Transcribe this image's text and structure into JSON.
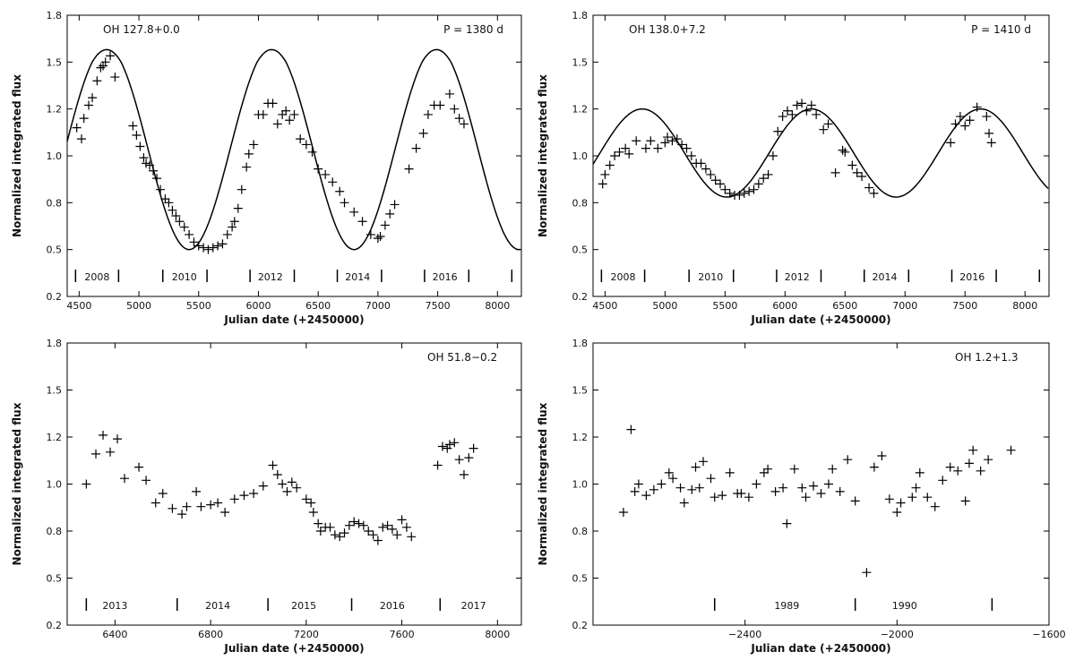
{
  "chart_data": [
    {
      "type": "scatter",
      "title": "",
      "annotation": "OH  127.8+0.0",
      "period_text": "P  =  1380  d",
      "xlabel": "Julian date (+2450000)",
      "ylabel": "Normalized integrated flux",
      "xlim": [
        4400,
        8200
      ],
      "ylim": [
        0.2,
        1.8
      ],
      "xticks": [
        4500,
        5000,
        5500,
        6000,
        6500,
        7000,
        7500,
        8000
      ],
      "yticks": [
        0.2,
        0.5,
        0.8,
        1.0,
        1.2,
        1.5,
        1.8
      ],
      "ytick_positions": [
        0.2,
        0.5,
        0.75,
        1.0,
        1.25,
        1.5,
        1.8
      ],
      "years": [
        {
          "label": "2008",
          "x": 4650
        },
        {
          "label": "2010",
          "x": 5380
        },
        {
          "label": "2012",
          "x": 6100
        },
        {
          "label": "2014",
          "x": 6830
        },
        {
          "label": "2016",
          "x": 7560
        }
      ],
      "year_ticks": [
        4470,
        4830,
        5200,
        5570,
        5930,
        6300,
        6660,
        7030,
        7390,
        7760,
        8120
      ],
      "model_curve": {
        "min": 0.5,
        "max": 1.58,
        "period": 1380,
        "peak_x": 4730
      },
      "points": [
        [
          4480,
          1.15
        ],
        [
          4520,
          1.09
        ],
        [
          4540,
          1.2
        ],
        [
          4580,
          1.27
        ],
        [
          4610,
          1.31
        ],
        [
          4650,
          1.4
        ],
        [
          4680,
          1.47
        ],
        [
          4700,
          1.48
        ],
        [
          4720,
          1.5
        ],
        [
          4760,
          1.54
        ],
        [
          4800,
          1.42
        ],
        [
          4950,
          1.16
        ],
        [
          4980,
          1.11
        ],
        [
          5010,
          1.05
        ],
        [
          5040,
          0.99
        ],
        [
          5060,
          0.96
        ],
        [
          5090,
          0.95
        ],
        [
          5120,
          0.92
        ],
        [
          5150,
          0.88
        ],
        [
          5180,
          0.82
        ],
        [
          5220,
          0.77
        ],
        [
          5250,
          0.75
        ],
        [
          5280,
          0.71
        ],
        [
          5310,
          0.68
        ],
        [
          5340,
          0.65
        ],
        [
          5380,
          0.62
        ],
        [
          5420,
          0.58
        ],
        [
          5460,
          0.54
        ],
        [
          5500,
          0.52
        ],
        [
          5540,
          0.51
        ],
        [
          5580,
          0.5
        ],
        [
          5620,
          0.51
        ],
        [
          5660,
          0.52
        ],
        [
          5700,
          0.53
        ],
        [
          5740,
          0.58
        ],
        [
          5780,
          0.62
        ],
        [
          5800,
          0.65
        ],
        [
          5830,
          0.72
        ],
        [
          5860,
          0.82
        ],
        [
          5900,
          0.94
        ],
        [
          5920,
          1.01
        ],
        [
          5960,
          1.06
        ],
        [
          6000,
          1.22
        ],
        [
          6040,
          1.22
        ],
        [
          6080,
          1.28
        ],
        [
          6120,
          1.28
        ],
        [
          6160,
          1.17
        ],
        [
          6200,
          1.22
        ],
        [
          6230,
          1.24
        ],
        [
          6260,
          1.19
        ],
        [
          6300,
          1.22
        ],
        [
          6350,
          1.09
        ],
        [
          6400,
          1.06
        ],
        [
          6450,
          1.02
        ],
        [
          6500,
          0.93
        ],
        [
          6560,
          0.9
        ],
        [
          6620,
          0.86
        ],
        [
          6680,
          0.81
        ],
        [
          6720,
          0.75
        ],
        [
          6800,
          0.7
        ],
        [
          6870,
          0.65
        ],
        [
          6940,
          0.58
        ],
        [
          7000,
          0.56
        ],
        [
          7020,
          0.57
        ],
        [
          7060,
          0.63
        ],
        [
          7100,
          0.69
        ],
        [
          7140,
          0.74
        ],
        [
          7260,
          0.93
        ],
        [
          7320,
          1.04
        ],
        [
          7380,
          1.12
        ],
        [
          7420,
          1.22
        ],
        [
          7470,
          1.27
        ],
        [
          7520,
          1.27
        ],
        [
          7600,
          1.33
        ],
        [
          7640,
          1.25
        ],
        [
          7680,
          1.2
        ],
        [
          7720,
          1.17
        ]
      ]
    },
    {
      "type": "scatter",
      "title": "",
      "annotation": "OH  138.0+7.2",
      "period_text": "P  =  1410  d",
      "xlabel": "Julian date (+2450000)",
      "ylabel": "Normalized integrated flux",
      "xlim": [
        4400,
        8200
      ],
      "ylim": [
        0.2,
        1.8
      ],
      "xticks": [
        4500,
        5000,
        5500,
        6000,
        6500,
        7000,
        7500,
        8000
      ],
      "yticks": [
        0.2,
        0.5,
        0.8,
        1.0,
        1.2,
        1.5,
        1.8
      ],
      "ytick_positions": [
        0.2,
        0.5,
        0.75,
        1.0,
        1.25,
        1.5,
        1.8
      ],
      "years": [
        {
          "label": "2008",
          "x": 4650
        },
        {
          "label": "2010",
          "x": 5380
        },
        {
          "label": "2012",
          "x": 6100
        },
        {
          "label": "2014",
          "x": 6830
        },
        {
          "label": "2016",
          "x": 7560
        }
      ],
      "year_ticks": [
        4470,
        4830,
        5200,
        5570,
        5930,
        6300,
        6660,
        7030,
        7390,
        7760,
        8120
      ],
      "model_curve": {
        "min": 0.78,
        "max": 1.25,
        "period": 1410,
        "peak_x": 4810
      },
      "points": [
        [
          4480,
          0.85
        ],
        [
          4500,
          0.9
        ],
        [
          4540,
          0.95
        ],
        [
          4580,
          1.0
        ],
        [
          4620,
          1.02
        ],
        [
          4670,
          1.04
        ],
        [
          4700,
          1.01
        ],
        [
          4760,
          1.08
        ],
        [
          4840,
          1.04
        ],
        [
          4880,
          1.08
        ],
        [
          4940,
          1.04
        ],
        [
          5000,
          1.07
        ],
        [
          5020,
          1.1
        ],
        [
          5060,
          1.08
        ],
        [
          5100,
          1.09
        ],
        [
          5140,
          1.06
        ],
        [
          5180,
          1.04
        ],
        [
          5220,
          1.0
        ],
        [
          5260,
          0.96
        ],
        [
          5300,
          0.96
        ],
        [
          5340,
          0.93
        ],
        [
          5380,
          0.9
        ],
        [
          5420,
          0.87
        ],
        [
          5460,
          0.85
        ],
        [
          5500,
          0.82
        ],
        [
          5540,
          0.8
        ],
        [
          5580,
          0.79
        ],
        [
          5620,
          0.79
        ],
        [
          5660,
          0.8
        ],
        [
          5700,
          0.81
        ],
        [
          5740,
          0.82
        ],
        [
          5780,
          0.85
        ],
        [
          5820,
          0.88
        ],
        [
          5860,
          0.9
        ],
        [
          5900,
          1.0
        ],
        [
          5940,
          1.13
        ],
        [
          5980,
          1.21
        ],
        [
          6020,
          1.24
        ],
        [
          6060,
          1.22
        ],
        [
          6100,
          1.27
        ],
        [
          6140,
          1.28
        ],
        [
          6180,
          1.24
        ],
        [
          6220,
          1.27
        ],
        [
          6260,
          1.22
        ],
        [
          6320,
          1.14
        ],
        [
          6360,
          1.17
        ],
        [
          6420,
          0.91
        ],
        [
          6480,
          1.03
        ],
        [
          6500,
          1.02
        ],
        [
          6560,
          0.95
        ],
        [
          6600,
          0.91
        ],
        [
          6640,
          0.89
        ],
        [
          6700,
          0.83
        ],
        [
          6740,
          0.8
        ],
        [
          7380,
          1.07
        ],
        [
          7420,
          1.17
        ],
        [
          7460,
          1.21
        ],
        [
          7500,
          1.16
        ],
        [
          7540,
          1.19
        ],
        [
          7600,
          1.26
        ],
        [
          7680,
          1.21
        ],
        [
          7700,
          1.12
        ],
        [
          7720,
          1.07
        ]
      ]
    },
    {
      "type": "scatter",
      "title": "",
      "annotation": "OH  51.8−0.2",
      "xlabel": "Julian date (+2450000)",
      "ylabel": "Normalized integrated flux",
      "xlim": [
        6200,
        8100
      ],
      "ylim": [
        0.2,
        1.8
      ],
      "xticks": [
        6400,
        6800,
        7200,
        7600,
        8000
      ],
      "yticks": [
        0.2,
        0.5,
        0.8,
        1.0,
        1.2,
        1.5,
        1.8
      ],
      "ytick_positions": [
        0.2,
        0.5,
        0.75,
        1.0,
        1.25,
        1.5,
        1.8
      ],
      "years": [
        {
          "label": "2013",
          "x": 6400
        },
        {
          "label": "2014",
          "x": 6830
        },
        {
          "label": "2015",
          "x": 7190
        },
        {
          "label": "2016",
          "x": 7560
        },
        {
          "label": "2017",
          "x": 7900
        }
      ],
      "year_ticks": [
        6280,
        6660,
        7040,
        7390,
        7760
      ],
      "points": [
        [
          6280,
          1.0
        ],
        [
          6320,
          1.16
        ],
        [
          6350,
          1.26
        ],
        [
          6380,
          1.17
        ],
        [
          6410,
          1.24
        ],
        [
          6440,
          1.03
        ],
        [
          6500,
          1.09
        ],
        [
          6530,
          1.02
        ],
        [
          6570,
          0.9
        ],
        [
          6600,
          0.95
        ],
        [
          6640,
          0.87
        ],
        [
          6680,
          0.84
        ],
        [
          6700,
          0.88
        ],
        [
          6740,
          0.96
        ],
        [
          6760,
          0.88
        ],
        [
          6800,
          0.89
        ],
        [
          6830,
          0.9
        ],
        [
          6860,
          0.85
        ],
        [
          6900,
          0.92
        ],
        [
          6940,
          0.94
        ],
        [
          6980,
          0.95
        ],
        [
          7020,
          0.99
        ],
        [
          7060,
          1.1
        ],
        [
          7080,
          1.05
        ],
        [
          7100,
          1.0
        ],
        [
          7120,
          0.96
        ],
        [
          7140,
          1.01
        ],
        [
          7160,
          0.98
        ],
        [
          7200,
          0.92
        ],
        [
          7220,
          0.9
        ],
        [
          7230,
          0.85
        ],
        [
          7250,
          0.79
        ],
        [
          7260,
          0.75
        ],
        [
          7280,
          0.77
        ],
        [
          7300,
          0.77
        ],
        [
          7320,
          0.73
        ],
        [
          7340,
          0.72
        ],
        [
          7360,
          0.74
        ],
        [
          7380,
          0.78
        ],
        [
          7400,
          0.8
        ],
        [
          7420,
          0.79
        ],
        [
          7440,
          0.78
        ],
        [
          7460,
          0.75
        ],
        [
          7480,
          0.73
        ],
        [
          7500,
          0.7
        ],
        [
          7520,
          0.77
        ],
        [
          7540,
          0.78
        ],
        [
          7560,
          0.76
        ],
        [
          7580,
          0.73
        ],
        [
          7600,
          0.81
        ],
        [
          7620,
          0.77
        ],
        [
          7640,
          0.72
        ],
        [
          7750,
          1.1
        ],
        [
          7770,
          1.2
        ],
        [
          7790,
          1.19
        ],
        [
          7800,
          1.21
        ],
        [
          7820,
          1.22
        ],
        [
          7840,
          1.13
        ],
        [
          7860,
          1.05
        ],
        [
          7880,
          1.14
        ],
        [
          7900,
          1.19
        ]
      ]
    },
    {
      "type": "scatter",
      "title": "",
      "annotation": "OH  1.2+1.3",
      "xlabel": "Julian date (+2450000)",
      "ylabel": "Normalized integrated flux",
      "xlim": [
        -2800,
        -1600
      ],
      "ylim": [
        0.2,
        1.8
      ],
      "xticks": [
        -2400,
        -2000,
        -1600
      ],
      "yticks": [
        0.2,
        0.5,
        0.8,
        1.0,
        1.2,
        1.5,
        1.8
      ],
      "ytick_positions": [
        0.2,
        0.5,
        0.75,
        1.0,
        1.25,
        1.5,
        1.8
      ],
      "years": [
        {
          "label": "1989",
          "x": -2290
        },
        {
          "label": "1990",
          "x": -1980
        }
      ],
      "year_ticks": [
        -2480,
        -2110,
        -1750
      ],
      "points": [
        [
          -2720,
          0.85
        ],
        [
          -2700,
          1.29
        ],
        [
          -2690,
          0.96
        ],
        [
          -2680,
          1.0
        ],
        [
          -2660,
          0.94
        ],
        [
          -2640,
          0.97
        ],
        [
          -2620,
          1.0
        ],
        [
          -2600,
          1.06
        ],
        [
          -2590,
          1.03
        ],
        [
          -2570,
          0.98
        ],
        [
          -2560,
          0.9
        ],
        [
          -2540,
          0.97
        ],
        [
          -2530,
          1.09
        ],
        [
          -2520,
          0.98
        ],
        [
          -2510,
          1.12
        ],
        [
          -2490,
          1.03
        ],
        [
          -2480,
          0.93
        ],
        [
          -2460,
          0.94
        ],
        [
          -2440,
          1.06
        ],
        [
          -2420,
          0.95
        ],
        [
          -2410,
          0.95
        ],
        [
          -2390,
          0.93
        ],
        [
          -2370,
          1.0
        ],
        [
          -2350,
          1.06
        ],
        [
          -2340,
          1.08
        ],
        [
          -2320,
          0.96
        ],
        [
          -2300,
          0.98
        ],
        [
          -2290,
          0.79
        ],
        [
          -2270,
          1.08
        ],
        [
          -2250,
          0.98
        ],
        [
          -2240,
          0.93
        ],
        [
          -2220,
          0.99
        ],
        [
          -2200,
          0.95
        ],
        [
          -2180,
          1.0
        ],
        [
          -2170,
          1.08
        ],
        [
          -2150,
          0.96
        ],
        [
          -2130,
          1.13
        ],
        [
          -2110,
          0.91
        ],
        [
          -2080,
          0.53
        ],
        [
          -2060,
          1.09
        ],
        [
          -2040,
          1.15
        ],
        [
          -2020,
          0.92
        ],
        [
          -2000,
          0.85
        ],
        [
          -1990,
          0.9
        ],
        [
          -1960,
          0.93
        ],
        [
          -1950,
          0.98
        ],
        [
          -1940,
          1.06
        ],
        [
          -1920,
          0.93
        ],
        [
          -1900,
          0.88
        ],
        [
          -1880,
          1.02
        ],
        [
          -1860,
          1.09
        ],
        [
          -1840,
          1.07
        ],
        [
          -1820,
          0.91
        ],
        [
          -1810,
          1.11
        ],
        [
          -1800,
          1.18
        ],
        [
          -1780,
          1.07
        ],
        [
          -1760,
          1.13
        ],
        [
          -1700,
          1.18
        ]
      ]
    }
  ]
}
